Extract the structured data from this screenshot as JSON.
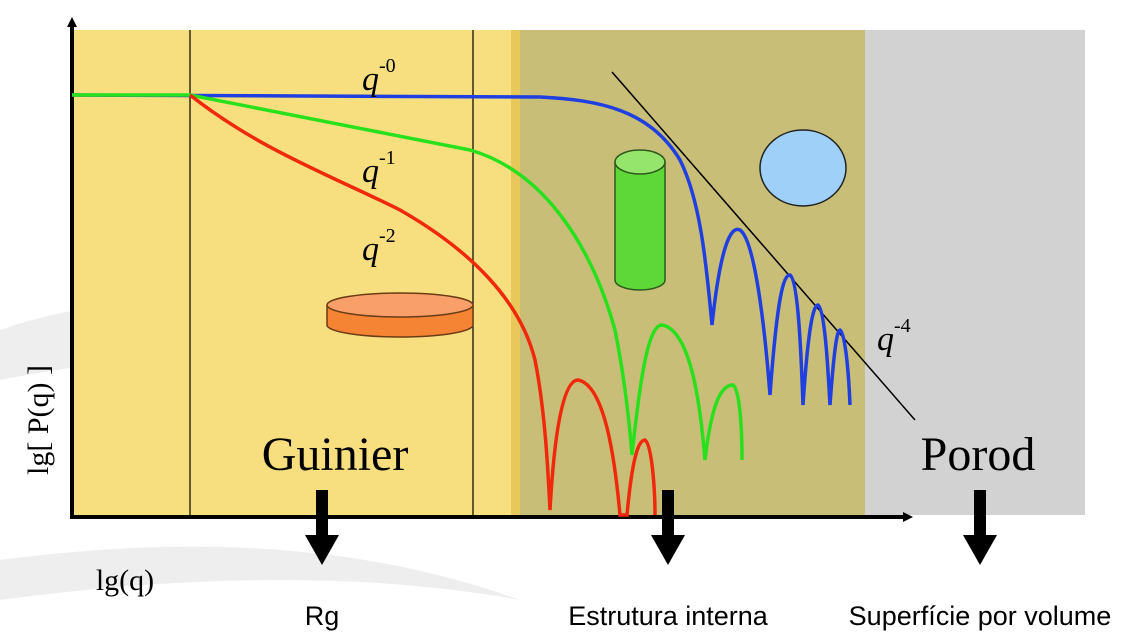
{
  "regions": {
    "guinier": "Guinier",
    "porod": "Porod"
  },
  "axes": {
    "y_label": "lg[ P(q) ]",
    "x_label": "lg(q)"
  },
  "curve_labels": [
    {
      "base": "q",
      "exp": "-0"
    },
    {
      "base": "q",
      "exp": "-1"
    },
    {
      "base": "q",
      "exp": "-2"
    },
    {
      "base": "q",
      "exp": "-4"
    }
  ],
  "outputs": [
    "Rg",
    "Estrutura interna",
    "Superfície por volume"
  ]
}
